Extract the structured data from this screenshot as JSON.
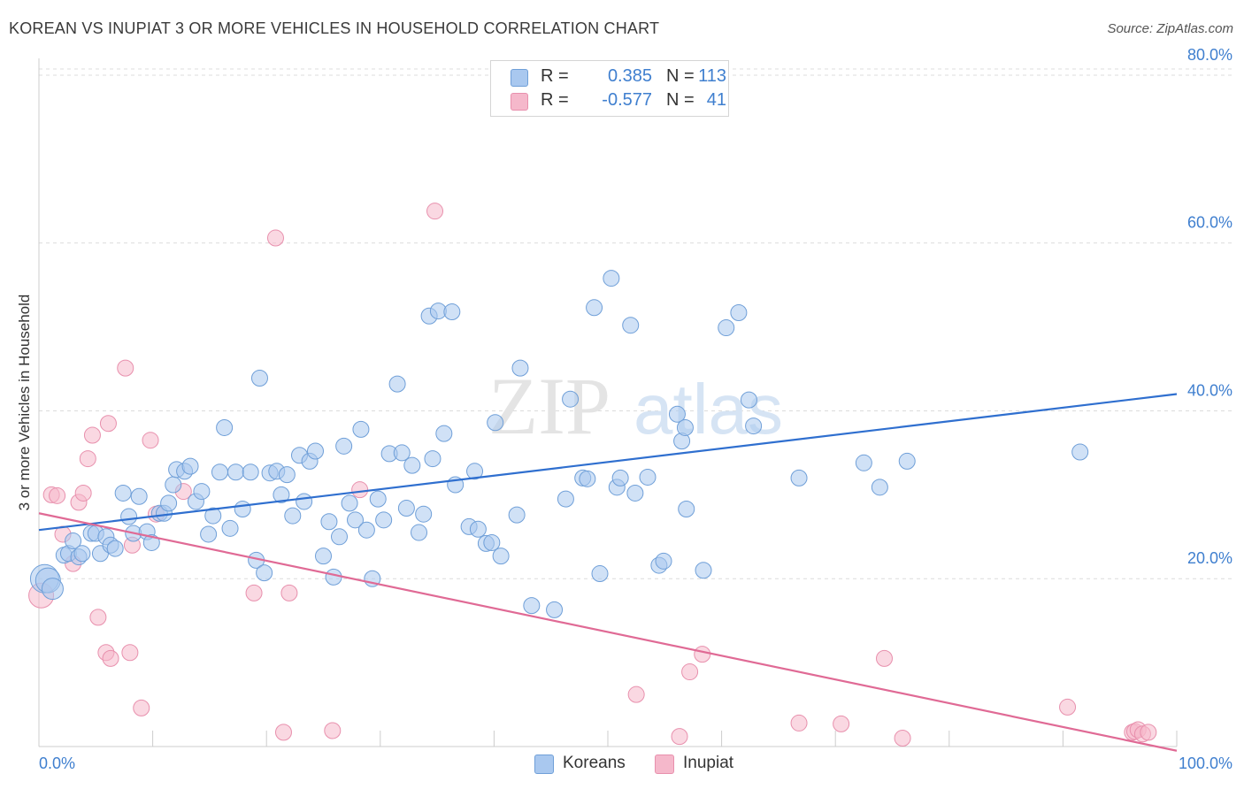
{
  "header": {
    "title": "KOREAN VS INUPIAT 3 OR MORE VEHICLES IN HOUSEHOLD CORRELATION CHART",
    "source": "Source: ZipAtlas.com"
  },
  "watermark": {
    "zip": "ZIP",
    "atlas": "atlas"
  },
  "legend": {
    "rows": [
      {
        "r_label": "R =",
        "r_value": "0.385",
        "n_label": "N =",
        "n_value": "113",
        "color": "#a9c8ef"
      },
      {
        "r_label": "R =",
        "r_value": "-0.577",
        "n_label": "N =",
        "n_value": "41",
        "color": "#f5b8cb"
      }
    ]
  },
  "bottom_legend": {
    "koreans": "Koreans",
    "inupiat": "Inupiat"
  },
  "colors": {
    "korean_fill": "#a9c8ef",
    "korean_stroke": "#6f9fd8",
    "korean_line": "#2f6fcf",
    "inupiat_fill": "#f5b8cb",
    "inupiat_stroke": "#e890ad",
    "inupiat_line": "#e06a95",
    "tick_text": "#3f7fcf",
    "grid": "#dcdcdc"
  },
  "chart_data": {
    "type": "scatter",
    "title": "KOREAN VS INUPIAT 3 OR MORE VEHICLES IN HOUSEHOLD CORRELATION CHART",
    "xlabel": "",
    "ylabel": "3 or more Vehicles in Household",
    "xlim": [
      0,
      100
    ],
    "ylim": [
      0,
      82
    ],
    "x_tick_labels": [
      {
        "value": 0,
        "label": "0.0%"
      },
      {
        "value": 100,
        "label": "100.0%"
      }
    ],
    "x_minor_ticks": [
      10,
      20,
      30,
      40,
      50,
      60,
      70,
      80,
      90,
      100
    ],
    "y_ticks": [
      {
        "value": 20,
        "label": "20.0%"
      },
      {
        "value": 40,
        "label": "40.0%"
      },
      {
        "value": 60,
        "label": "60.0%"
      },
      {
        "value": 80,
        "label": "80.0%"
      }
    ],
    "grid": true,
    "series": [
      {
        "name": "Koreans",
        "R": 0.385,
        "N": 113,
        "trend": {
          "x0": 0,
          "y0": 25.8,
          "x1": 100,
          "y1": 42.0
        },
        "points": [
          [
            0.5,
            20,
            16
          ],
          [
            0.8,
            19.8,
            14
          ],
          [
            1.2,
            18.8,
            12
          ],
          [
            2.2,
            22.8,
            9
          ],
          [
            2.6,
            23,
            9
          ],
          [
            3,
            24.5,
            9
          ],
          [
            3.5,
            22.6,
            9
          ],
          [
            3.8,
            23,
            9
          ],
          [
            4.6,
            25.4,
            9
          ],
          [
            5,
            25.4,
            9
          ],
          [
            5.4,
            23,
            9
          ],
          [
            5.9,
            25,
            9
          ],
          [
            6.3,
            24,
            9
          ],
          [
            6.7,
            23.6,
            9
          ],
          [
            7.4,
            30.2,
            9
          ],
          [
            7.9,
            27.4,
            9
          ],
          [
            8.3,
            25.4,
            9
          ],
          [
            8.8,
            29.8,
            9
          ],
          [
            9.5,
            25.6,
            9
          ],
          [
            9.9,
            24.3,
            9
          ],
          [
            10.6,
            27.8,
            9
          ],
          [
            11,
            27.8,
            9
          ],
          [
            11.4,
            29,
            9
          ],
          [
            11.8,
            31.2,
            9
          ],
          [
            12.1,
            33,
            9
          ],
          [
            12.8,
            32.8,
            9
          ],
          [
            13.3,
            33.4,
            9
          ],
          [
            13.8,
            29.2,
            9
          ],
          [
            14.3,
            30.4,
            9
          ],
          [
            14.9,
            25.3,
            9
          ],
          [
            15.3,
            27.5,
            9
          ],
          [
            15.9,
            32.7,
            9
          ],
          [
            16.3,
            38,
            9
          ],
          [
            16.8,
            26,
            9
          ],
          [
            17.3,
            32.7,
            9
          ],
          [
            17.9,
            28.3,
            9
          ],
          [
            18.6,
            32.7,
            9
          ],
          [
            19.1,
            22.2,
            9
          ],
          [
            19.4,
            43.9,
            9
          ],
          [
            19.8,
            20.7,
            9
          ],
          [
            20.3,
            32.6,
            9
          ],
          [
            20.9,
            32.8,
            9
          ],
          [
            21.3,
            30,
            9
          ],
          [
            21.8,
            32.4,
            9
          ],
          [
            22.3,
            27.5,
            9
          ],
          [
            22.9,
            34.7,
            9
          ],
          [
            23.3,
            29.2,
            9
          ],
          [
            23.8,
            34,
            9
          ],
          [
            24.3,
            35.2,
            9
          ],
          [
            25,
            22.7,
            9
          ],
          [
            25.5,
            26.8,
            9
          ],
          [
            25.9,
            20.2,
            9
          ],
          [
            26.4,
            25,
            9
          ],
          [
            26.8,
            35.8,
            9
          ],
          [
            27.3,
            29,
            9
          ],
          [
            27.8,
            27,
            9
          ],
          [
            28.3,
            37.8,
            9
          ],
          [
            28.8,
            25.8,
            9
          ],
          [
            29.3,
            20,
            9
          ],
          [
            29.8,
            29.5,
            9
          ],
          [
            30.3,
            27,
            9
          ],
          [
            30.8,
            34.9,
            9
          ],
          [
            31.5,
            43.2,
            9
          ],
          [
            31.9,
            35,
            9
          ],
          [
            32.3,
            28.4,
            9
          ],
          [
            32.8,
            33.5,
            9
          ],
          [
            33.4,
            25.5,
            9
          ],
          [
            33.8,
            27.7,
            9
          ],
          [
            34.3,
            51.3,
            9
          ],
          [
            34.6,
            34.3,
            9
          ],
          [
            35.1,
            51.9,
            9
          ],
          [
            35.6,
            37.3,
            9
          ],
          [
            36.3,
            51.8,
            9
          ],
          [
            36.6,
            31.2,
            9
          ],
          [
            37.8,
            26.2,
            9
          ],
          [
            38.3,
            32.8,
            9
          ],
          [
            38.6,
            25.9,
            9
          ],
          [
            39.3,
            24.2,
            9
          ],
          [
            39.8,
            24.3,
            9
          ],
          [
            40.1,
            38.6,
            9
          ],
          [
            40.6,
            22.7,
            9
          ],
          [
            42,
            27.6,
            9
          ],
          [
            42.3,
            45.1,
            9
          ],
          [
            43.3,
            16.8,
            9
          ],
          [
            45.3,
            16.3,
            9
          ],
          [
            46.3,
            29.5,
            9
          ],
          [
            46.7,
            41.4,
            9
          ],
          [
            47.8,
            32,
            9
          ],
          [
            48.2,
            31.9,
            9
          ],
          [
            48.8,
            52.3,
            9
          ],
          [
            49.3,
            20.6,
            9
          ],
          [
            50.3,
            55.8,
            9
          ],
          [
            50.8,
            30.9,
            9
          ],
          [
            51.1,
            32,
            9
          ],
          [
            52,
            50.2,
            9
          ],
          [
            52.4,
            30.2,
            9
          ],
          [
            53.5,
            32.1,
            9
          ],
          [
            54.5,
            21.6,
            9
          ],
          [
            54.9,
            22.1,
            9
          ],
          [
            56.1,
            39.6,
            9
          ],
          [
            56.5,
            36.4,
            9
          ],
          [
            56.8,
            38,
            9
          ],
          [
            56.9,
            28.3,
            9
          ],
          [
            58.4,
            21,
            9
          ],
          [
            60.4,
            49.9,
            9
          ],
          [
            61.5,
            51.7,
            9
          ],
          [
            62.4,
            41.3,
            9
          ],
          [
            62.8,
            38.2,
            9
          ],
          [
            66.8,
            32,
            9
          ],
          [
            72.5,
            33.8,
            9
          ],
          [
            73.9,
            30.9,
            9
          ],
          [
            76.3,
            34,
            9
          ],
          [
            91.5,
            35.1,
            9
          ]
        ]
      },
      {
        "name": "Inupiat",
        "R": -0.577,
        "N": 41,
        "trend": {
          "x0": 0,
          "y0": 27.8,
          "x1": 100,
          "y1": -0.5
        },
        "points": [
          [
            0.2,
            18,
            14
          ],
          [
            1.1,
            30,
            9
          ],
          [
            1.6,
            29.9,
            9
          ],
          [
            2.1,
            25.3,
            9
          ],
          [
            3,
            21.8,
            9
          ],
          [
            3.5,
            29.1,
            9
          ],
          [
            3.9,
            30.2,
            9
          ],
          [
            4.3,
            34.3,
            9
          ],
          [
            4.7,
            37.1,
            9
          ],
          [
            5.2,
            15.4,
            9
          ],
          [
            5.9,
            11.2,
            9
          ],
          [
            6.3,
            10.5,
            9
          ],
          [
            6.1,
            38.5,
            9
          ],
          [
            7.6,
            45.1,
            9
          ],
          [
            8,
            11.2,
            9
          ],
          [
            8.2,
            24,
            9
          ],
          [
            9,
            4.6,
            9
          ],
          [
            9.8,
            36.5,
            9
          ],
          [
            10.3,
            27.7,
            9
          ],
          [
            12.7,
            30.4,
            9
          ],
          [
            18.9,
            18.3,
            9
          ],
          [
            20.8,
            60.6,
            9
          ],
          [
            21.5,
            1.7,
            9
          ],
          [
            22,
            18.3,
            9
          ],
          [
            25.8,
            1.9,
            9
          ],
          [
            28.2,
            30.6,
            9
          ],
          [
            34.8,
            63.8,
            9
          ],
          [
            52.5,
            6.2,
            9
          ],
          [
            56.3,
            1.2,
            9
          ],
          [
            57.2,
            8.9,
            9
          ],
          [
            58.3,
            11,
            9
          ],
          [
            66.8,
            2.8,
            9
          ],
          [
            70.5,
            2.7,
            9
          ],
          [
            74.3,
            10.5,
            9
          ],
          [
            75.9,
            1,
            9
          ],
          [
            90.4,
            4.7,
            9
          ],
          [
            96.1,
            1.7,
            9
          ],
          [
            96.3,
            1.8,
            9
          ],
          [
            96.6,
            2,
            9
          ],
          [
            97,
            1.5,
            9
          ],
          [
            97.5,
            1.7,
            9
          ]
        ]
      }
    ]
  }
}
